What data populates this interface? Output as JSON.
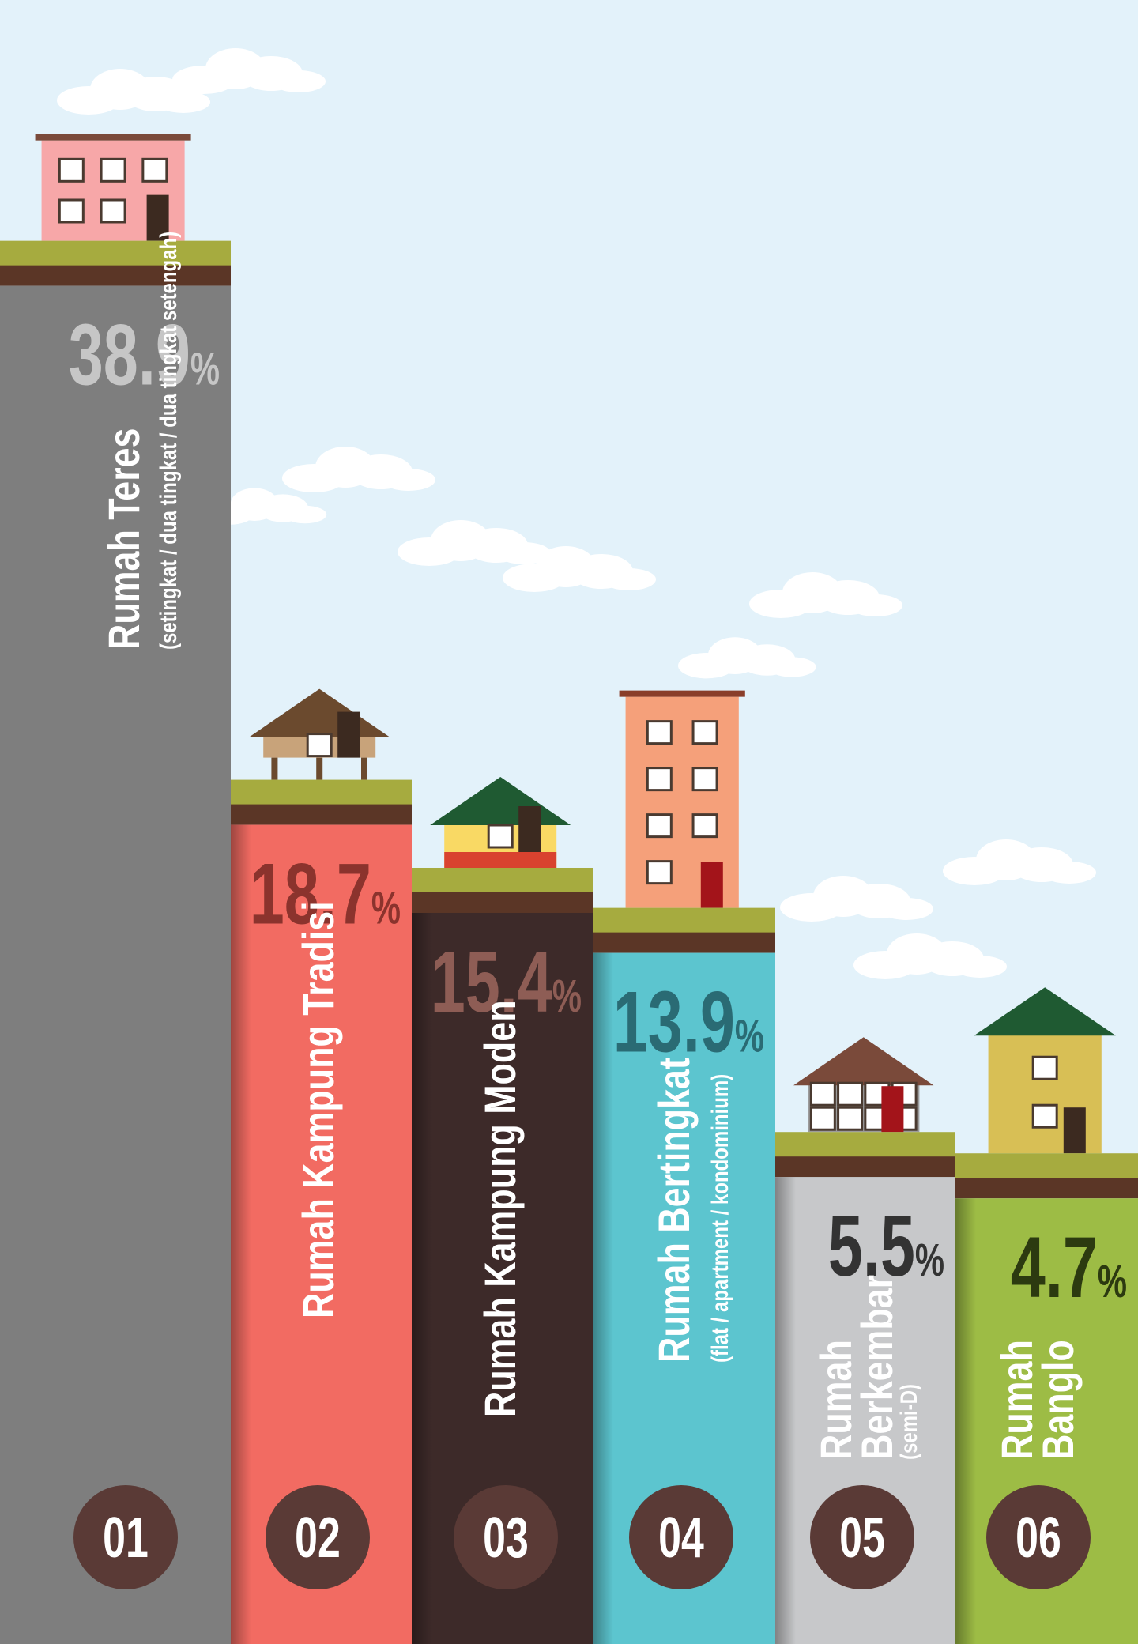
{
  "chart_data": {
    "type": "bar",
    "categories": [
      "Rumah Teres",
      "Rumah Kampung Tradisi",
      "Rumah Kampung Moden",
      "Rumah Bertingkat",
      "Rumah Berkembar",
      "Rumah Banglo"
    ],
    "subtitles": [
      "(setingkat  / dua tingkat / dua tingkat setengah)",
      null,
      null,
      "(flat / apartment / kondominium)",
      "(semi-D)",
      null
    ],
    "numbers": [
      "01",
      "02",
      "03",
      "04",
      "05",
      "06"
    ],
    "values": [
      38.9,
      18.7,
      15.4,
      13.9,
      5.5,
      4.7
    ],
    "value_labels": [
      "38.9%",
      "18.7%",
      "15.4%",
      "13.9%",
      "5.5%",
      "4.7%"
    ],
    "colors": [
      "#7e7e7e",
      "#f26b62",
      "#3d2a29",
      "#5cc5cf",
      "#c7c8ca",
      "#9dbc45"
    ],
    "value_label_colors": [
      "#c6c6c6",
      "#8b332d",
      "#8e5d55",
      "#2a6b74",
      "#333333",
      "#2c3a10"
    ],
    "ylim": [
      -12,
      42
    ]
  }
}
